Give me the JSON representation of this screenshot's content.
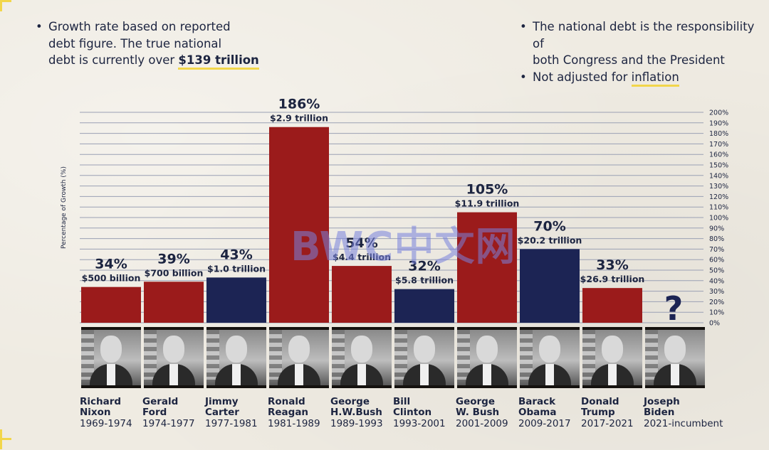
{
  "notes_left": {
    "line1": "Growth rate based on reported",
    "line2": "debt figure. The true national",
    "line3_prefix": "debt is currently over ",
    "line3_highlight": "$139 trillion"
  },
  "notes_right": {
    "item1_line1": "The national debt is the responsibility of",
    "item1_line2": "both Congress and the President",
    "item2_prefix": "Not adjusted for ",
    "item2_highlight": "inflation"
  },
  "watermark": "BWC中文网",
  "colors": {
    "republican": "#9b1b1b",
    "democrat": "#1c2454",
    "text": "#1c2440",
    "accent": "#f2d64b",
    "unknown": "#1c2454"
  },
  "chart_data": {
    "type": "bar",
    "ylabel": "Percentage of Growth (%)",
    "ylim": [
      0,
      200
    ],
    "y_ticks": [
      "0%",
      "10%",
      "20%",
      "30%",
      "40%",
      "50%",
      "60%",
      "70%",
      "80%",
      "90%",
      "100%",
      "110%",
      "120%",
      "130%",
      "140%",
      "150%",
      "160%",
      "170%",
      "180%",
      "190%",
      "200%"
    ],
    "categories": [
      "Richard Nixon",
      "Gerald Ford",
      "Jimmy Carter",
      "Ronald Reagan",
      "George H.W.Bush",
      "Bill Clinton",
      "George W. Bush",
      "Barack Obama",
      "Donald Trump",
      "Joseph Biden"
    ],
    "values": [
      34,
      39,
      43,
      186,
      54,
      32,
      105,
      70,
      33,
      null
    ],
    "percent_labels": [
      "34%",
      "39%",
      "43%",
      "186%",
      "54%",
      "32%",
      "105%",
      "70%",
      "33%",
      "?"
    ],
    "debt_labels": [
      "$500 billion",
      "$700 billion",
      "$1.0 trillion",
      "$2.9 trillion",
      "$4.4 trillion",
      "$5.8 trillion",
      "$11.9 trillion",
      "$20.2 trillion",
      "$26.9 trillion",
      ""
    ],
    "party": [
      "republican",
      "republican",
      "democrat",
      "republican",
      "republican",
      "democrat",
      "republican",
      "democrat",
      "republican",
      "unknown"
    ],
    "grid": true
  },
  "presidents": [
    {
      "first": "Richard",
      "last": "Nixon",
      "years": "1969-1974"
    },
    {
      "first": "Gerald",
      "last": "Ford",
      "years": "1974-1977"
    },
    {
      "first": "Jimmy",
      "last": "Carter",
      "years": "1977-1981"
    },
    {
      "first": "Ronald",
      "last": "Reagan",
      "years": "1981-1989"
    },
    {
      "first": "George",
      "last": "H.W.Bush",
      "years": "1989-1993"
    },
    {
      "first": "Bill",
      "last": "Clinton",
      "years": "1993-2001"
    },
    {
      "first": "George",
      "last": "W. Bush",
      "years": "2001-2009"
    },
    {
      "first": "Barack",
      "last": "Obama",
      "years": "2009-2017"
    },
    {
      "first": "Donald",
      "last": "Trump",
      "years": "2017-2021"
    },
    {
      "first": "Joseph",
      "last": "Biden",
      "years": "2021-incumbent"
    }
  ]
}
